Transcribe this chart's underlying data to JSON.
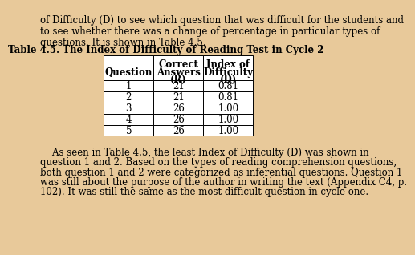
{
  "title": "Table 4.5. The Index of Difficulty of Reading Test in Cycle 2",
  "col_headers_line1": [
    "",
    "Correct",
    "Index of"
  ],
  "col_headers_line2": [
    "Question",
    "Answers",
    "Difficulty"
  ],
  "col_headers_line3": [
    "",
    "(R)",
    "(D)"
  ],
  "rows": [
    [
      "1",
      "21",
      "0.81"
    ],
    [
      "2",
      "21",
      "0.81"
    ],
    [
      "3",
      "26",
      "1.00"
    ],
    [
      "4",
      "26",
      "1.00"
    ],
    [
      "5",
      "26",
      "1.00"
    ]
  ],
  "top_text_lines": [
    "of Difficulty (D) to see which question that was difficult for the students and",
    "to see whether there was a change of percentage in particular types of",
    "questions. It is shown in Table 4.5."
  ],
  "bottom_text_lines": [
    "    As seen in Table 4.5, the least Index of Difficulty (D) was shown in",
    "question 1 and 2. Based on the types of reading comprehension questions,",
    "both question 1 and 2 were categorized as inferential questions. Question 1",
    "was still about the purpose of the author in writing the text (Appendix C4, p.",
    "102). It was still the same as the most difficult question in cycle one."
  ],
  "bg_color": "#e8c99a",
  "table_bg": "#ffffff",
  "title_fontsize": 8.5,
  "cell_fontsize": 8.5,
  "header_fontsize": 8.5,
  "body_fontsize": 8.5
}
